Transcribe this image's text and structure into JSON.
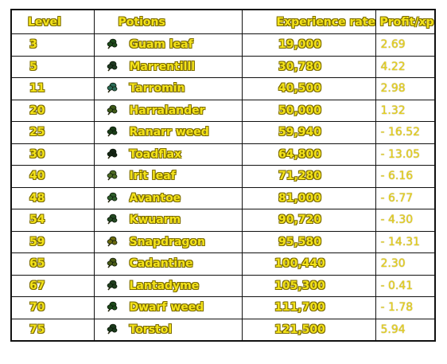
{
  "headers": {
    "level": "Level",
    "potions": "Potions",
    "experience": "Experience rates",
    "profit": "Profit/xp"
  },
  "rows": [
    {
      "level": "3",
      "herb": "Guam leaf",
      "xp": "19,000",
      "profit": "2.69",
      "icon": "guam-leaf-icon",
      "leaf_color": "#1d4a1a"
    },
    {
      "level": "5",
      "herb": "Marrentilll",
      "xp": "30,780",
      "profit": "4.22",
      "icon": "marrentill-icon",
      "leaf_color": "#1f3a22"
    },
    {
      "level": "11",
      "herb": "Tarromin",
      "xp": "40,500",
      "profit": "2.98",
      "icon": "tarromin-icon",
      "leaf_color": "#2b6b56"
    },
    {
      "level": "20",
      "herb": "Harralander",
      "xp": "50,000",
      "profit": "1.32",
      "icon": "harralander-icon",
      "leaf_color": "#3f5a18"
    },
    {
      "level": "25",
      "herb": "Ranarr weed",
      "xp": "59,940",
      "profit": "- 16.52",
      "icon": "ranarr-weed-icon",
      "leaf_color": "#1a3d18"
    },
    {
      "level": "30",
      "herb": "Toadflax",
      "xp": "64,800",
      "profit": "- 13.05",
      "icon": "toadflax-icon",
      "leaf_color": "#142414"
    },
    {
      "level": "40",
      "herb": "Irit leaf",
      "xp": "71,280",
      "profit": "- 6.16",
      "icon": "irit-leaf-icon",
      "leaf_color": "#4e6b24"
    },
    {
      "level": "48",
      "herb": "Avantoe",
      "xp": "81,000",
      "profit": "- 6.77",
      "icon": "avantoe-icon",
      "leaf_color": "#2e5e2a"
    },
    {
      "level": "54",
      "herb": "Kwuarm",
      "xp": "90,720",
      "profit": "- 4.30",
      "icon": "kwuarm-icon",
      "leaf_color": "#244a22"
    },
    {
      "level": "59",
      "herb": "Snapdragon",
      "xp": "95,580",
      "profit": "- 14.31",
      "icon": "snapdragon-icon",
      "leaf_color": "#6b6a10"
    },
    {
      "level": "65",
      "herb": "Cadantine",
      "xp": "100,440",
      "profit": "2.30",
      "icon": "cadantine-icon",
      "leaf_color": "#4a5b16"
    },
    {
      "level": "67",
      "herb": "Lantadyme",
      "xp": "105,300",
      "profit": "- 0.41",
      "icon": "lantadyme-icon",
      "leaf_color": "#213f1f"
    },
    {
      "level": "70",
      "herb": "Dwarf weed",
      "xp": "111,700",
      "profit": "- 1.78",
      "icon": "dwarf-weed-icon",
      "leaf_color": "#1d4a1a"
    },
    {
      "level": "75",
      "herb": "Torstol",
      "xp": "121,500",
      "profit": "5.94",
      "icon": "torstol-icon",
      "leaf_color": "#1b3a1b"
    }
  ]
}
